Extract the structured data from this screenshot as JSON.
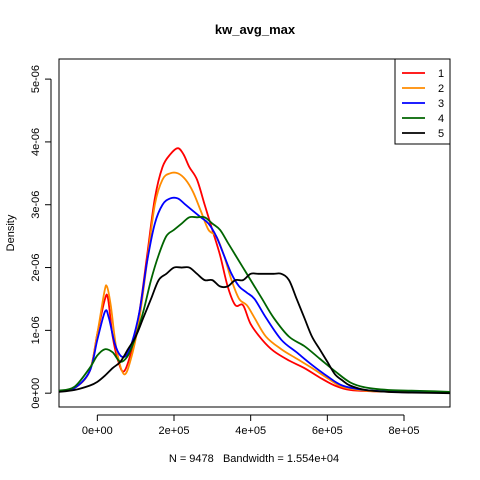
{
  "chart_data": {
    "type": "line",
    "title": "kw_avg_max",
    "xlabel": "N = 9478   Bandwidth = 1.554e+04",
    "ylabel": "Density",
    "xlim": [
      -100000,
      920000
    ],
    "ylim": [
      -2.2e-07,
      5.32e-06
    ],
    "x_ticks": [
      0,
      200000,
      400000,
      600000,
      800000
    ],
    "x_tick_labels": [
      "0e+00",
      "2e+05",
      "4e+05",
      "6e+05",
      "8e+05"
    ],
    "y_ticks": [
      0,
      1e-06,
      2e-06,
      3e-06,
      4e-06,
      5e-06
    ],
    "y_tick_labels": [
      "0e+00",
      "1e-06",
      "2e-06",
      "3e-06",
      "4e-06",
      "5e-06"
    ],
    "legend_position": "top-right",
    "series": [
      {
        "name": "1",
        "color": "#ff0000",
        "points": [
          [
            -100000,
            4e-08
          ],
          [
            -60000,
            8e-08
          ],
          [
            -20000,
            3.5e-07
          ],
          [
            0,
            9.5e-07
          ],
          [
            20000,
            1.5e-06
          ],
          [
            28000,
            1.5e-06
          ],
          [
            40000,
            9e-07
          ],
          [
            55000,
            5e-07
          ],
          [
            70000,
            3.5e-07
          ],
          [
            90000,
            7e-07
          ],
          [
            110000,
            1.3e-06
          ],
          [
            130000,
            2.2e-06
          ],
          [
            150000,
            3.1e-06
          ],
          [
            170000,
            3.6e-06
          ],
          [
            190000,
            3.8e-06
          ],
          [
            210000,
            3.9e-06
          ],
          [
            225000,
            3.8e-06
          ],
          [
            240000,
            3.6e-06
          ],
          [
            260000,
            3.4e-06
          ],
          [
            280000,
            3e-06
          ],
          [
            300000,
            2.6e-06
          ],
          [
            320000,
            2.2e-06
          ],
          [
            340000,
            1.7e-06
          ],
          [
            360000,
            1.4e-06
          ],
          [
            380000,
            1.4e-06
          ],
          [
            400000,
            1.1e-06
          ],
          [
            430000,
            8.5e-07
          ],
          [
            460000,
            6.7e-07
          ],
          [
            500000,
            5.2e-07
          ],
          [
            540000,
            4e-07
          ],
          [
            580000,
            2.5e-07
          ],
          [
            620000,
            1.2e-07
          ],
          [
            660000,
            5e-08
          ],
          [
            720000,
            3e-08
          ],
          [
            800000,
            2e-08
          ],
          [
            860000,
            2e-08
          ],
          [
            920000,
            1e-08
          ]
        ]
      },
      {
        "name": "2",
        "color": "#ff8c00",
        "points": [
          [
            -100000,
            4e-08
          ],
          [
            -60000,
            8e-08
          ],
          [
            -20000,
            3.5e-07
          ],
          [
            0,
            9.5e-07
          ],
          [
            18000,
            1.6e-06
          ],
          [
            25000,
            1.7e-06
          ],
          [
            35000,
            1.4e-06
          ],
          [
            50000,
            7e-07
          ],
          [
            70000,
            3e-07
          ],
          [
            90000,
            6e-07
          ],
          [
            110000,
            1.2e-06
          ],
          [
            130000,
            2.1e-06
          ],
          [
            150000,
            3e-06
          ],
          [
            170000,
            3.4e-06
          ],
          [
            190000,
            3.5e-06
          ],
          [
            210000,
            3.5e-06
          ],
          [
            230000,
            3.4e-06
          ],
          [
            250000,
            3.2e-06
          ],
          [
            270000,
            2.9e-06
          ],
          [
            290000,
            2.6e-06
          ],
          [
            310000,
            2.5e-06
          ],
          [
            330000,
            2.2e-06
          ],
          [
            350000,
            1.8e-06
          ],
          [
            370000,
            1.5e-06
          ],
          [
            390000,
            1.4e-06
          ],
          [
            410000,
            1.2e-06
          ],
          [
            440000,
            9e-07
          ],
          [
            480000,
            7e-07
          ],
          [
            520000,
            5.5e-07
          ],
          [
            560000,
            4e-07
          ],
          [
            600000,
            2.4e-07
          ],
          [
            640000,
            1e-07
          ],
          [
            700000,
            4e-08
          ],
          [
            780000,
            2e-08
          ],
          [
            860000,
            1e-08
          ],
          [
            920000,
            1e-08
          ]
        ]
      },
      {
        "name": "3",
        "color": "#0000ff",
        "points": [
          [
            -100000,
            4e-08
          ],
          [
            -60000,
            8e-08
          ],
          [
            -20000,
            3.5e-07
          ],
          [
            0,
            8.5e-07
          ],
          [
            20000,
            1.3e-06
          ],
          [
            30000,
            1.2e-06
          ],
          [
            45000,
            8e-07
          ],
          [
            60000,
            6e-07
          ],
          [
            75000,
            6e-07
          ],
          [
            90000,
            8e-07
          ],
          [
            110000,
            1.3e-06
          ],
          [
            130000,
            2.1e-06
          ],
          [
            150000,
            2.7e-06
          ],
          [
            170000,
            3e-06
          ],
          [
            190000,
            3.1e-06
          ],
          [
            210000,
            3.1e-06
          ],
          [
            230000,
            3e-06
          ],
          [
            250000,
            2.9e-06
          ],
          [
            270000,
            2.8e-06
          ],
          [
            290000,
            2.7e-06
          ],
          [
            310000,
            2.5e-06
          ],
          [
            330000,
            2.2e-06
          ],
          [
            350000,
            1.9e-06
          ],
          [
            370000,
            1.7e-06
          ],
          [
            390000,
            1.6e-06
          ],
          [
            410000,
            1.5e-06
          ],
          [
            440000,
            1.2e-06
          ],
          [
            480000,
            8.5e-07
          ],
          [
            520000,
            6.5e-07
          ],
          [
            560000,
            4.5e-07
          ],
          [
            600000,
            2.7e-07
          ],
          [
            640000,
            1.2e-07
          ],
          [
            700000,
            5e-08
          ],
          [
            780000,
            2e-08
          ],
          [
            860000,
            1e-08
          ],
          [
            920000,
            1e-08
          ]
        ]
      },
      {
        "name": "4",
        "color": "#006400",
        "points": [
          [
            -100000,
            4e-08
          ],
          [
            -60000,
            1e-07
          ],
          [
            -20000,
            4e-07
          ],
          [
            0,
            6e-07
          ],
          [
            20000,
            7e-07
          ],
          [
            40000,
            6.5e-07
          ],
          [
            60000,
            5e-07
          ],
          [
            80000,
            6e-07
          ],
          [
            100000,
            9e-07
          ],
          [
            120000,
            1.3e-06
          ],
          [
            140000,
            1.8e-06
          ],
          [
            160000,
            2.2e-06
          ],
          [
            180000,
            2.5e-06
          ],
          [
            200000,
            2.6e-06
          ],
          [
            220000,
            2.7e-06
          ],
          [
            240000,
            2.8e-06
          ],
          [
            260000,
            2.8e-06
          ],
          [
            280000,
            2.8e-06
          ],
          [
            300000,
            2.7e-06
          ],
          [
            320000,
            2.6e-06
          ],
          [
            340000,
            2.4e-06
          ],
          [
            360000,
            2.2e-06
          ],
          [
            380000,
            2e-06
          ],
          [
            400000,
            1.8e-06
          ],
          [
            430000,
            1.5e-06
          ],
          [
            460000,
            1.2e-06
          ],
          [
            500000,
            9e-07
          ],
          [
            540000,
            7.5e-07
          ],
          [
            580000,
            5.5e-07
          ],
          [
            620000,
            3.5e-07
          ],
          [
            660000,
            1.7e-07
          ],
          [
            700000,
            9e-08
          ],
          [
            760000,
            5e-08
          ],
          [
            820000,
            4e-08
          ],
          [
            880000,
            3e-08
          ],
          [
            920000,
            2e-08
          ]
        ]
      },
      {
        "name": "5",
        "color": "#000000",
        "points": [
          [
            -100000,
            2e-08
          ],
          [
            -60000,
            5e-08
          ],
          [
            -20000,
            1.2e-07
          ],
          [
            0,
            1.8e-07
          ],
          [
            20000,
            2.8e-07
          ],
          [
            40000,
            4e-07
          ],
          [
            60000,
            5e-07
          ],
          [
            80000,
            7e-07
          ],
          [
            100000,
            9e-07
          ],
          [
            120000,
            1.2e-06
          ],
          [
            140000,
            1.5e-06
          ],
          [
            160000,
            1.8e-06
          ],
          [
            180000,
            1.9e-06
          ],
          [
            200000,
            2e-06
          ],
          [
            220000,
            2e-06
          ],
          [
            240000,
            2e-06
          ],
          [
            260000,
            1.9e-06
          ],
          [
            280000,
            1.8e-06
          ],
          [
            300000,
            1.8e-06
          ],
          [
            320000,
            1.7e-06
          ],
          [
            340000,
            1.7e-06
          ],
          [
            360000,
            1.8e-06
          ],
          [
            380000,
            1.8e-06
          ],
          [
            400000,
            1.9e-06
          ],
          [
            420000,
            1.9e-06
          ],
          [
            440000,
            1.9e-06
          ],
          [
            460000,
            1.9e-06
          ],
          [
            480000,
            1.9e-06
          ],
          [
            500000,
            1.8e-06
          ],
          [
            520000,
            1.5e-06
          ],
          [
            540000,
            1.2e-06
          ],
          [
            560000,
            9e-07
          ],
          [
            580000,
            7e-07
          ],
          [
            600000,
            5e-07
          ],
          [
            620000,
            3e-07
          ],
          [
            640000,
            2e-07
          ],
          [
            660000,
            1.2e-07
          ],
          [
            700000,
            5e-08
          ],
          [
            760000,
            2e-08
          ],
          [
            820000,
            1e-08
          ],
          [
            920000,
            0.0
          ]
        ]
      }
    ]
  }
}
